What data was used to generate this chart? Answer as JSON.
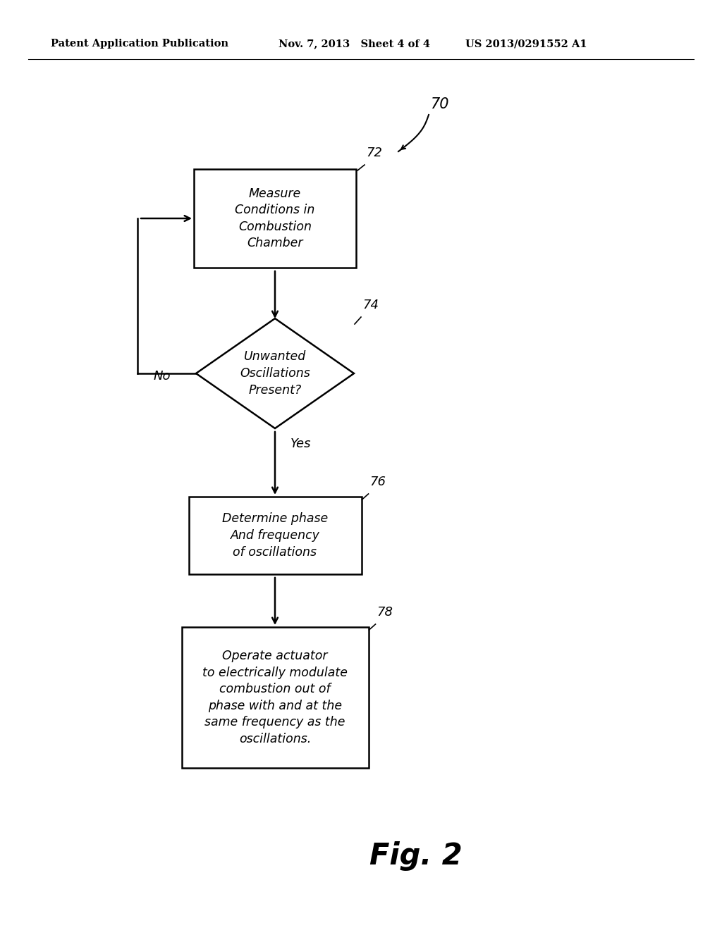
{
  "bg_color": "#ffffff",
  "header_left": "Patent Application Publication",
  "header_mid": "Nov. 7, 2013   Sheet 4 of 4",
  "header_right": "US 2013/0291552 A1",
  "header_fontsize": 10.5,
  "fig_label": "Fig. 2",
  "fig_label_fontsize": 30,
  "node_label_70": "70",
  "node_label_72": "72",
  "node_label_74": "74",
  "node_label_76": "76",
  "node_label_78": "78",
  "box72_text": "Measure\nConditions in\nCombustion\nChamber",
  "diamond74_text": "Unwanted\nOscillations\nPresent?",
  "box76_text": "Determine phase\nAnd frequency\nof oscillations",
  "box78_text": "Operate actuator\nto electrically modulate\ncombustion out of\nphase with and at the\nsame frequency as the\noscillations.",
  "no_label": "No",
  "yes_label": "Yes",
  "text_fontsize": 12.5,
  "small_label_fontsize": 13,
  "line_color": "#000000",
  "line_width": 1.8
}
